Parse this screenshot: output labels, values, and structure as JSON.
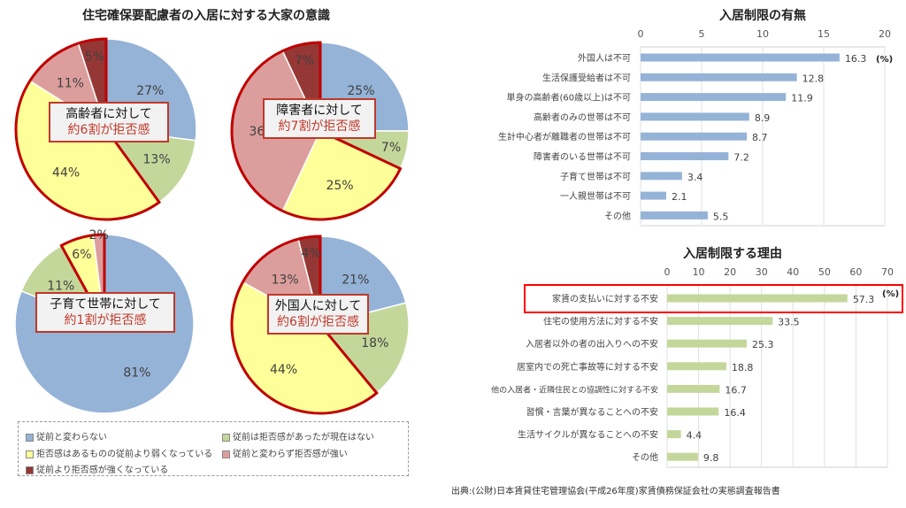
{
  "chart_data": [
    {
      "type": "pie",
      "title": "住宅確保要配慮者の入居に対する大家の意識",
      "legend": [
        "従前と変わらない",
        "従前は拒否感があったが現在はない",
        "拒否感はあるものの従前より弱くなっている",
        "従前と変わらず拒否感が強い",
        "従前より拒否感が強くなっている"
      ],
      "legend_placement": "bottom",
      "colors": [
        "#95b3d7",
        "#c4d79b",
        "#ffff99",
        "#dc9e9c",
        "#953735"
      ],
      "pies": [
        {
          "values": [
            27,
            13,
            44,
            11,
            5
          ],
          "callout": {
            "line1": "高齢者に対して",
            "line2": "約6割が拒否感"
          }
        },
        {
          "values": [
            25,
            7,
            25,
            36,
            7
          ],
          "callout": {
            "line1": "障害者に対して",
            "line2": "約7割が拒否感"
          }
        },
        {
          "values": [
            81,
            11,
            6,
            2,
            0
          ],
          "callout": {
            "line1": "子育て世帯に対して",
            "line2": "約1割が拒否感"
          }
        },
        {
          "values": [
            21,
            18,
            44,
            13,
            4
          ],
          "callout": {
            "line1": "外国人に対して",
            "line2": "約6割が拒否感"
          }
        }
      ],
      "highlighted_slices": [
        2,
        3,
        4
      ],
      "highlight_color": "#c00000"
    },
    {
      "type": "bar",
      "orientation": "horizontal",
      "title": "入居制限の有無",
      "unit": "(%)",
      "xlim": [
        0,
        20
      ],
      "ticks": [
        "0",
        "5",
        "10",
        "15",
        "20"
      ],
      "grid": true,
      "color": "#95b3d7",
      "categories": [
        "外国人は不可",
        "生活保護受給者は不可",
        "単身の高齢者(60歳以上)は不可",
        "高齢者のみの世帯は不可",
        "生計中心者が離職者の世帯は不可",
        "障害者のいる世帯は不可",
        "子育て世帯は不可",
        "一人親世帯は不可",
        "その他"
      ],
      "values": [
        16.3,
        12.8,
        11.9,
        8.9,
        8.7,
        7.2,
        3.4,
        2.1,
        5.5
      ]
    },
    {
      "type": "bar",
      "orientation": "horizontal",
      "title": "入居制限する理由",
      "unit": "(%)",
      "xlim": [
        0,
        70
      ],
      "ticks": [
        "0",
        "10",
        "20",
        "30",
        "40",
        "50",
        "60",
        "70"
      ],
      "grid": true,
      "color": "#c4d79b",
      "highlighted_category": 0,
      "highlight_color": "#ff0000",
      "categories": [
        "家賃の支払いに対する不安",
        "住宅の使用方法に対する不安",
        "入居者以外の者の出入りへの不安",
        "居室内での死亡事故等に対する不安",
        "他の入居者・近隣住民との協調性に対する不安",
        "習慣・言葉が異なることへの不安",
        "生活サイクルが異なることへの不安",
        "その他"
      ],
      "values": [
        57.3,
        33.5,
        25.3,
        18.8,
        16.7,
        16.4,
        4.4,
        9.8
      ]
    }
  ],
  "source": "出典:(公財)日本賃貸住宅管理協会(平成26年度)家賃債務保証会社の実態調査報告書"
}
